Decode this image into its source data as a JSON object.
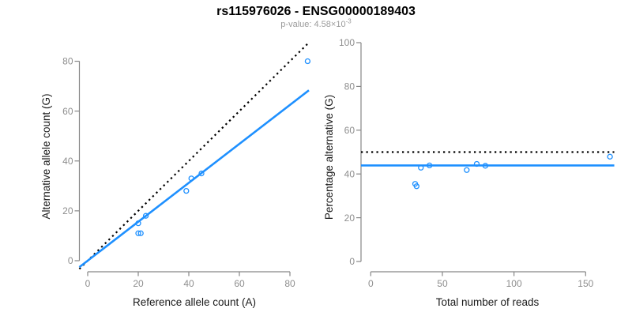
{
  "header": {
    "title": "rs115976026 - ENSG00000189403",
    "pvalue_label": "p-value:",
    "pvalue_mantissa": "4.58×10",
    "pvalue_exponent": "-3"
  },
  "colors": {
    "accent_blue": "#1E90FF",
    "reference_black": "#000000",
    "axis_gray": "#878787",
    "tick_label_gray": "#8E8E8E"
  },
  "chart_data": [
    {
      "type": "scatter",
      "name": "allele-counts",
      "title": "",
      "xlabel": "Reference allele count (A)",
      "ylabel": "Alternative allele count (G)",
      "xticks": [
        0,
        20,
        40,
        60,
        80
      ],
      "yticks": [
        0,
        20,
        40,
        60,
        80
      ],
      "xlim": [
        -3.3,
        87.5
      ],
      "ylim": [
        -4.4,
        87
      ],
      "grid": false,
      "legend": "none",
      "points": [
        [
          20,
          11
        ],
        [
          21,
          11
        ],
        [
          20,
          15
        ],
        [
          23,
          18
        ],
        [
          39,
          28
        ],
        [
          41,
          33
        ],
        [
          45,
          35
        ],
        [
          87,
          80
        ]
      ],
      "lines": [
        {
          "name": "identity-line",
          "style": "dotted",
          "color": "#000000",
          "slope": 1,
          "intercept": 0
        },
        {
          "name": "fitted-ratio-line",
          "style": "solid",
          "color": "#1E90FF",
          "slope": 0.781,
          "intercept": 0
        }
      ]
    },
    {
      "type": "scatter",
      "name": "percentage-vs-coverage",
      "title": "",
      "xlabel": "Total number of reads",
      "ylabel": "Percentage alternative (G)",
      "xticks": [
        0,
        50,
        100,
        150
      ],
      "yticks": [
        0,
        20,
        40,
        60,
        80,
        100
      ],
      "xlim": [
        -6.8,
        170
      ],
      "ylim": [
        -4.7,
        101
      ],
      "grid": false,
      "legend": "none",
      "points": [
        [
          31,
          35.48
        ],
        [
          32,
          34.38
        ],
        [
          35,
          42.86
        ],
        [
          41,
          43.9
        ],
        [
          67,
          41.79
        ],
        [
          74,
          44.59
        ],
        [
          80,
          43.75
        ],
        [
          167,
          47.9
        ]
      ],
      "lines": [
        {
          "name": "expected-50pct-line",
          "style": "dotted",
          "color": "#000000",
          "slope": 0,
          "intercept": 50
        },
        {
          "name": "observed-mean-line",
          "style": "solid",
          "color": "#1E90FF",
          "slope": 0,
          "intercept": 43.9
        }
      ]
    }
  ]
}
